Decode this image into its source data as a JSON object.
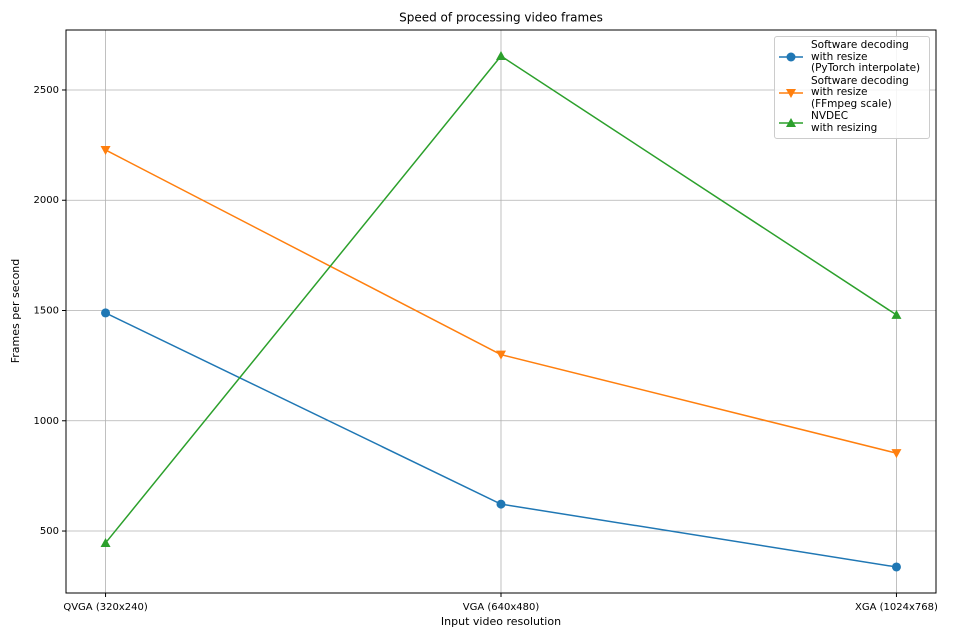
{
  "chart_data": {
    "type": "line",
    "title": "Speed of processing video frames",
    "x_label": "Input video resolution",
    "y_label": "Frames per second",
    "categories": [
      "QVGA (320x240)",
      "VGA (640x480)",
      "XGA (1024x768)"
    ],
    "series": [
      {
        "name": "Software decoding\nwith resize\n(PyTorch interpolate)",
        "color": "#1f77b4",
        "marker": "circle",
        "values": [
          1489,
          622,
          337
        ]
      },
      {
        "name": "Software decoding\nwith resize\n(FFmpeg scale)",
        "color": "#ff7f0e",
        "marker": "triangle-down",
        "values": [
          2228,
          1300,
          853
        ]
      },
      {
        "name": "NVDEC\nwith resizing",
        "color": "#2ca02c",
        "marker": "triangle-up",
        "values": [
          446,
          2654,
          1480
        ]
      }
    ],
    "ylim": [
      219,
      2772
    ],
    "yticks": [
      500,
      1000,
      1500,
      2000,
      2500
    ],
    "grid": true,
    "legend": "upper right"
  }
}
